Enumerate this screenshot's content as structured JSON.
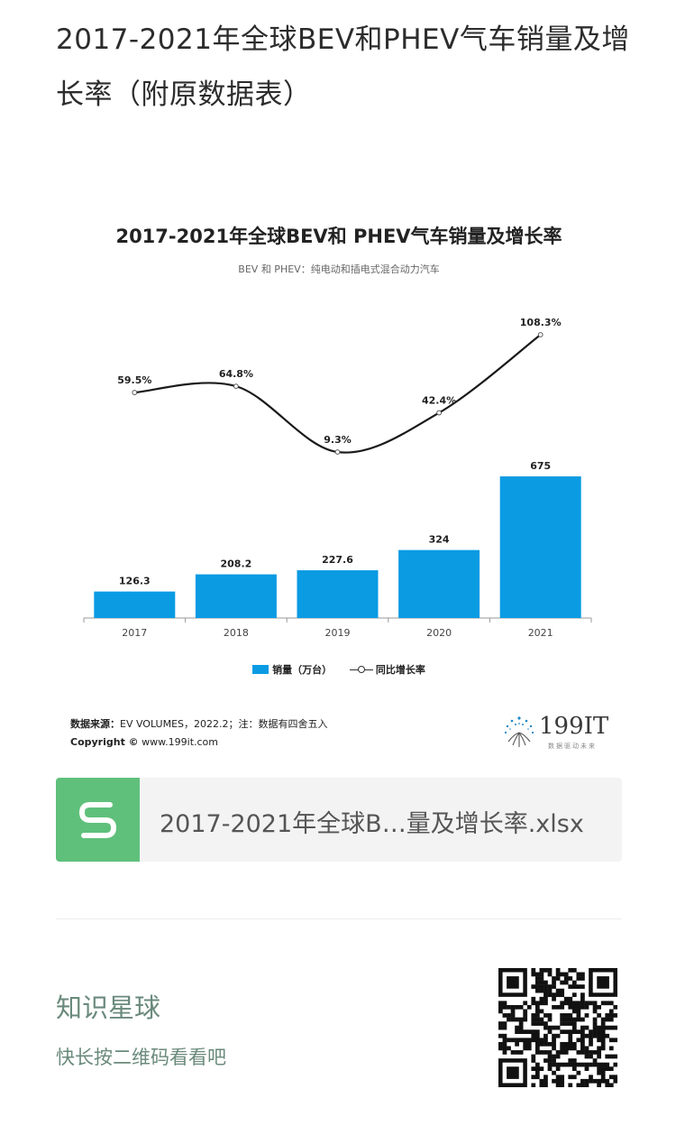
{
  "post": {
    "title": "2017-2021年全球BEV和PHEV气车销量及增长率（附原数据表）"
  },
  "chart": {
    "title": "2017-2021年全球BEV和 PHEV气车销量及增长率",
    "subtitle": "BEV 和 PHEV：纯电动和插电式混合动力汽车",
    "legend_bar": "销量（万台）",
    "legend_line": "同比增长率",
    "source_label": "数据来源：",
    "source_text": "EV VOLUMES，2022.2；注：数据有四舍五入",
    "copyright_label": "Copyright ©",
    "copyright_text": " www.199it.com",
    "logo_text": "199IT",
    "logo_tagline": "数据驱动未来",
    "bar_color": "#0a9be3",
    "line_color": "#1a1a1a"
  },
  "chart_data": {
    "type": "bar",
    "categories": [
      "2017",
      "2018",
      "2019",
      "2020",
      "2021"
    ],
    "series": [
      {
        "name": "销量（万台）",
        "type": "bar",
        "values": [
          126.3,
          208.2,
          227.6,
          324,
          675
        ],
        "labels": [
          "126.3",
          "208.2",
          "227.6",
          "324",
          "675"
        ]
      },
      {
        "name": "同比增长率",
        "type": "line",
        "values": [
          59.5,
          64.8,
          9.3,
          42.4,
          108.3
        ],
        "labels": [
          "59.5%",
          "64.8%",
          "9.3%",
          "42.4%",
          "108.3%"
        ]
      }
    ],
    "title": "2017-2021年全球BEV和 PHEV气车销量及增长率",
    "legend": "bottom",
    "grid": false
  },
  "file": {
    "name": "2017-2021年全球B…量及增长率.xlsx",
    "icon": "spreadsheet-s-icon",
    "icon_color": "#5fc07b"
  },
  "planet": {
    "title": "知识星球",
    "subtitle": "快长按二维码看看吧",
    "accent": "#6a8a7c"
  }
}
